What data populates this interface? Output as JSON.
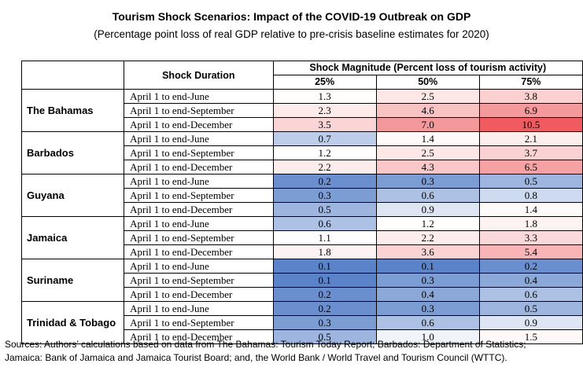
{
  "title": "Tourism Shock Scenarios: Impact of the COVID-19 Outbreak on GDP",
  "subtitle": "(Percentage point loss of real GDP relative to pre-crisis baseline estimates for 2020)",
  "header": {
    "duration": "Shock Duration",
    "magnitude": "Shock Magnitude (Percent loss of tourism activity)",
    "columns": [
      "25%",
      "50%",
      "75%"
    ]
  },
  "chart_data": {
    "type": "table",
    "title": "Tourism Shock Scenarios: Impact of the COVID-19 Outbreak on GDP",
    "subtitle": "(Percentage point loss of real GDP relative to pre-crisis baseline estimates for 2020)",
    "columns": [
      "25%",
      "50%",
      "75%"
    ],
    "periods": [
      "April 1 to end-June",
      "April 1 to end-September",
      "April 1 to end-December"
    ],
    "groups": [
      {
        "country": "The Bahamas",
        "rows": [
          [
            "1.3",
            "2.5",
            "3.8"
          ],
          [
            "2.3",
            "4.6",
            "6.9"
          ],
          [
            "3.5",
            "7.0",
            "10.5"
          ]
        ]
      },
      {
        "country": "Barbados",
        "rows": [
          [
            "0.7",
            "1.4",
            "2.1"
          ],
          [
            "1.2",
            "2.5",
            "3.7"
          ],
          [
            "2.2",
            "4.3",
            "6.5"
          ]
        ]
      },
      {
        "country": "Guyana",
        "rows": [
          [
            "0.2",
            "0.3",
            "0.5"
          ],
          [
            "0.3",
            "0.6",
            "0.8"
          ],
          [
            "0.5",
            "0.9",
            "1.4"
          ]
        ]
      },
      {
        "country": "Jamaica",
        "rows": [
          [
            "0.6",
            "1.2",
            "1.8"
          ],
          [
            "1.1",
            "2.2",
            "3.3"
          ],
          [
            "1.8",
            "3.6",
            "5.4"
          ]
        ]
      },
      {
        "country": "Suriname",
        "rows": [
          [
            "0.1",
            "0.1",
            "0.2"
          ],
          [
            "0.1",
            "0.3",
            "0.4"
          ],
          [
            "0.2",
            "0.4",
            "0.6"
          ]
        ]
      },
      {
        "country": "Trinidad & Tobago",
        "rows": [
          [
            "0.2",
            "0.3",
            "0.5"
          ],
          [
            "0.3",
            "0.6",
            "0.9"
          ],
          [
            "0.5",
            "1.0",
            "1.5"
          ]
        ]
      }
    ],
    "color_scale": {
      "low": "#5b83c9",
      "mid": "#ffffff",
      "high": "#ef5b5f"
    }
  },
  "sources": [
    "Sources: Authors’ calculations based on data from The Bahamas: Tourism Today Report; Barbados: Department of Statistics;",
    "Jamaica: Bank of Jamaica and Jamaica Tourist Board; and, the World Bank / World Travel and Tourism Council (WTTC)."
  ]
}
